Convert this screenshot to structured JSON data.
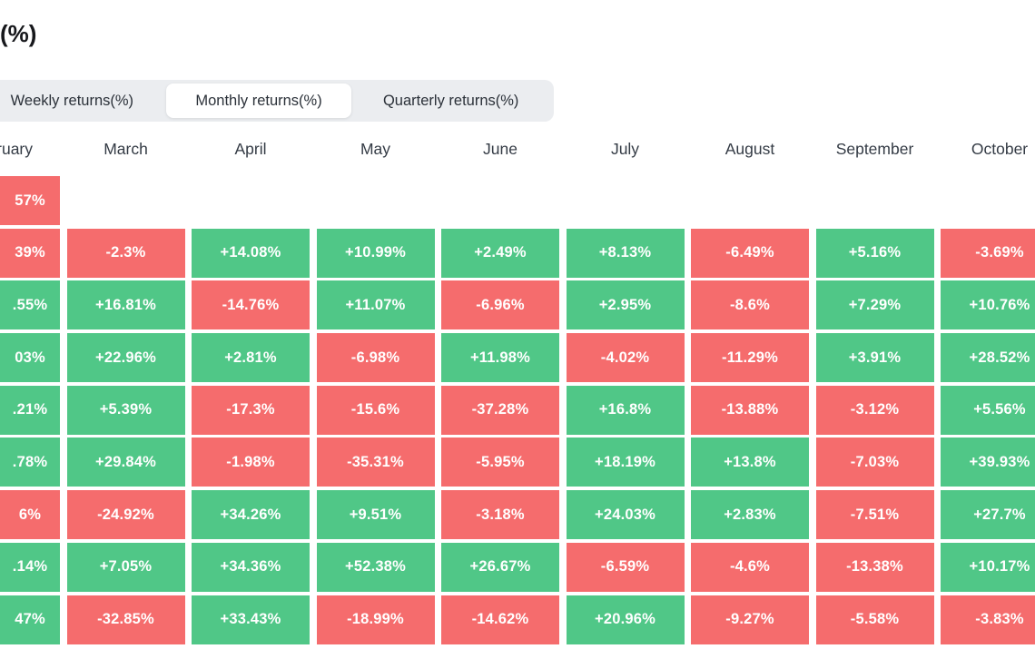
{
  "page": {
    "title": "(%)"
  },
  "tabs": {
    "items": [
      {
        "label": "Weekly returns(%)",
        "active": false
      },
      {
        "label": "Monthly returns(%)",
        "active": true
      },
      {
        "label": "Quarterly returns(%)",
        "active": false
      }
    ]
  },
  "chart_data": {
    "type": "heatmap",
    "title": "Monthly returns(%)",
    "columns": [
      "February",
      "March",
      "April",
      "May",
      "June",
      "July",
      "August",
      "September",
      "October"
    ],
    "first_column_cropped": true,
    "palette": {
      "positive": "#50C787",
      "negative": "#F56C6D",
      "value_text": "#FFFFFF"
    },
    "rows": [
      [
        {
          "v": "57%",
          "c": "r"
        },
        null,
        null,
        null,
        null,
        null,
        null,
        null,
        null
      ],
      [
        {
          "v": "39%",
          "c": "r"
        },
        {
          "v": "-2.3%",
          "c": "r"
        },
        {
          "v": "+14.08%",
          "c": "g"
        },
        {
          "v": "+10.99%",
          "c": "g"
        },
        {
          "v": "+2.49%",
          "c": "g"
        },
        {
          "v": "+8.13%",
          "c": "g"
        },
        {
          "v": "-6.49%",
          "c": "r"
        },
        {
          "v": "+5.16%",
          "c": "g"
        },
        {
          "v": "-3.69%",
          "c": "r"
        }
      ],
      [
        {
          "v": ".55%",
          "c": "g"
        },
        {
          "v": "+16.81%",
          "c": "g"
        },
        {
          "v": "-14.76%",
          "c": "r"
        },
        {
          "v": "+11.07%",
          "c": "g"
        },
        {
          "v": "-6.96%",
          "c": "r"
        },
        {
          "v": "+2.95%",
          "c": "g"
        },
        {
          "v": "-8.6%",
          "c": "r"
        },
        {
          "v": "+7.29%",
          "c": "g"
        },
        {
          "v": "+10.76%",
          "c": "g"
        }
      ],
      [
        {
          "v": "03%",
          "c": "g"
        },
        {
          "v": "+22.96%",
          "c": "g"
        },
        {
          "v": "+2.81%",
          "c": "g"
        },
        {
          "v": "-6.98%",
          "c": "r"
        },
        {
          "v": "+11.98%",
          "c": "g"
        },
        {
          "v": "-4.02%",
          "c": "r"
        },
        {
          "v": "-11.29%",
          "c": "r"
        },
        {
          "v": "+3.91%",
          "c": "g"
        },
        {
          "v": "+28.52%",
          "c": "g"
        }
      ],
      [
        {
          "v": ".21%",
          "c": "g"
        },
        {
          "v": "+5.39%",
          "c": "g"
        },
        {
          "v": "-17.3%",
          "c": "r"
        },
        {
          "v": "-15.6%",
          "c": "r"
        },
        {
          "v": "-37.28%",
          "c": "r"
        },
        {
          "v": "+16.8%",
          "c": "g"
        },
        {
          "v": "-13.88%",
          "c": "r"
        },
        {
          "v": "-3.12%",
          "c": "r"
        },
        {
          "v": "+5.56%",
          "c": "g"
        }
      ],
      [
        {
          "v": ".78%",
          "c": "g"
        },
        {
          "v": "+29.84%",
          "c": "g"
        },
        {
          "v": "-1.98%",
          "c": "r"
        },
        {
          "v": "-35.31%",
          "c": "r"
        },
        {
          "v": "-5.95%",
          "c": "r"
        },
        {
          "v": "+18.19%",
          "c": "g"
        },
        {
          "v": "+13.8%",
          "c": "g"
        },
        {
          "v": "-7.03%",
          "c": "r"
        },
        {
          "v": "+39.93%",
          "c": "g"
        }
      ],
      [
        {
          "v": "6%",
          "c": "r"
        },
        {
          "v": "-24.92%",
          "c": "r"
        },
        {
          "v": "+34.26%",
          "c": "g"
        },
        {
          "v": "+9.51%",
          "c": "g"
        },
        {
          "v": "-3.18%",
          "c": "r"
        },
        {
          "v": "+24.03%",
          "c": "g"
        },
        {
          "v": "+2.83%",
          "c": "g"
        },
        {
          "v": "-7.51%",
          "c": "r"
        },
        {
          "v": "+27.7%",
          "c": "g"
        }
      ],
      [
        {
          "v": ".14%",
          "c": "g"
        },
        {
          "v": "+7.05%",
          "c": "g"
        },
        {
          "v": "+34.36%",
          "c": "g"
        },
        {
          "v": "+52.38%",
          "c": "g"
        },
        {
          "v": "+26.67%",
          "c": "g"
        },
        {
          "v": "-6.59%",
          "c": "r"
        },
        {
          "v": "-4.6%",
          "c": "r"
        },
        {
          "v": "-13.38%",
          "c": "r"
        },
        {
          "v": "+10.17%",
          "c": "g"
        }
      ],
      [
        {
          "v": "47%",
          "c": "g"
        },
        {
          "v": "-32.85%",
          "c": "r"
        },
        {
          "v": "+33.43%",
          "c": "g"
        },
        {
          "v": "-18.99%",
          "c": "r"
        },
        {
          "v": "-14.62%",
          "c": "r"
        },
        {
          "v": "+20.96%",
          "c": "g"
        },
        {
          "v": "-9.27%",
          "c": "r"
        },
        {
          "v": "-5.58%",
          "c": "r"
        },
        {
          "v": "-3.83%",
          "c": "r"
        }
      ]
    ]
  }
}
